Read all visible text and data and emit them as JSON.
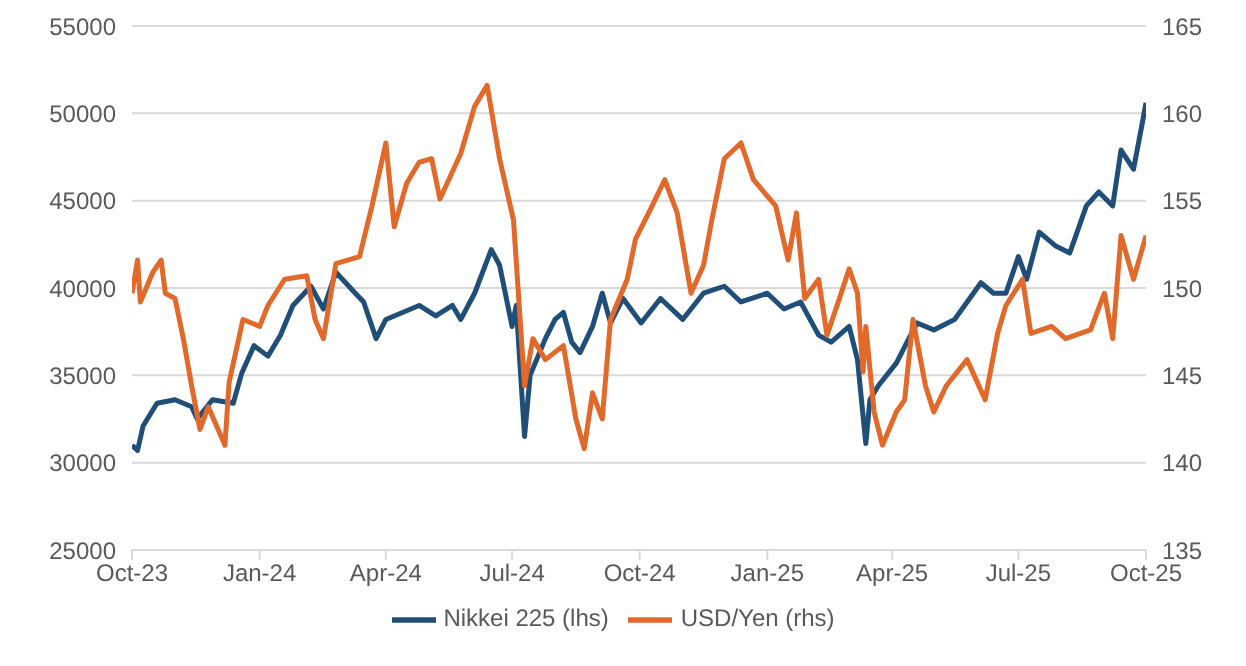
{
  "chart_data": {
    "type": "line",
    "xlim": [
      "2023-10",
      "2025-10"
    ],
    "xticks": [
      {
        "value": "2023-10",
        "label": "Oct-23"
      },
      {
        "value": "2024-01",
        "label": "Jan-24"
      },
      {
        "value": "2024-04",
        "label": "Apr-24"
      },
      {
        "value": "2024-07",
        "label": "Jul-24"
      },
      {
        "value": "2024-10",
        "label": "Oct-24"
      },
      {
        "value": "2025-01",
        "label": "Jan-25"
      },
      {
        "value": "2025-04",
        "label": "Apr-25"
      },
      {
        "value": "2025-07",
        "label": "Jul-25"
      },
      {
        "value": "2025-10",
        "label": "Oct-25"
      }
    ],
    "ylim": [
      25000,
      55000
    ],
    "yticks": [
      25000,
      30000,
      35000,
      40000,
      45000,
      50000,
      55000
    ],
    "y2lim": [
      135,
      165
    ],
    "y2ticks": [
      135,
      140,
      145,
      150,
      155,
      160,
      165
    ],
    "grid": "y",
    "legend": "bottom",
    "marker": "none",
    "line_style": "solid",
    "series": [
      {
        "name": "Nikkei 225 (lhs)",
        "color": "#1f4e79",
        "x": [
          "2023-10-01",
          "2023-10-05",
          "2023-10-09",
          "2023-10-19",
          "2023-11-01",
          "2023-11-13",
          "2023-11-17",
          "2023-11-28",
          "2023-12-13",
          "2023-12-19",
          "2023-12-28",
          "2024-01-07",
          "2024-01-16",
          "2024-01-25",
          "2024-02-07",
          "2024-02-16",
          "2024-02-25",
          "2024-03-10",
          "2024-03-16",
          "2024-03-25",
          "2024-04-01",
          "2024-04-13",
          "2024-04-25",
          "2024-05-07",
          "2024-05-19",
          "2024-05-25",
          "2024-06-04",
          "2024-06-16",
          "2024-06-22",
          "2024-07-01",
          "2024-07-04",
          "2024-07-10",
          "2024-07-14",
          "2024-07-25",
          "2024-08-01",
          "2024-08-07",
          "2024-08-13",
          "2024-08-19",
          "2024-08-28",
          "2024-09-04",
          "2024-09-10",
          "2024-09-19",
          "2024-10-02",
          "2024-10-16",
          "2024-11-01",
          "2024-11-16",
          "2024-12-01",
          "2024-12-13",
          "2025-01-01",
          "2025-01-13",
          "2025-01-25",
          "2025-02-07",
          "2025-02-16",
          "2025-03-01",
          "2025-03-07",
          "2025-03-13",
          "2025-03-16",
          "2025-03-22",
          "2025-04-04",
          "2025-04-13",
          "2025-04-19",
          "2025-05-01",
          "2025-05-16",
          "2025-06-04",
          "2025-06-13",
          "2025-06-22",
          "2025-07-01",
          "2025-07-07",
          "2025-07-16",
          "2025-07-28",
          "2025-08-07",
          "2025-08-19",
          "2025-08-28",
          "2025-09-07",
          "2025-09-13",
          "2025-09-22",
          "2025-09-28",
          "2025-10-01"
        ],
        "values": [
          31000,
          30700,
          32100,
          33400,
          33600,
          33200,
          32500,
          33600,
          33400,
          35100,
          36700,
          36100,
          37300,
          39000,
          40100,
          38800,
          40900,
          39700,
          39200,
          37100,
          38200,
          38600,
          39000,
          38400,
          39000,
          38200,
          39700,
          42200,
          41300,
          37800,
          39000,
          31500,
          35000,
          37100,
          38200,
          38600,
          36900,
          36300,
          37800,
          39700,
          38000,
          39400,
          38000,
          39400,
          38200,
          39700,
          40100,
          39200,
          39700,
          38800,
          39200,
          37300,
          36900,
          37800,
          35900,
          31100,
          33600,
          34400,
          35700,
          37100,
          38000,
          37600,
          38200,
          40300,
          39700,
          39700,
          41800,
          40500,
          43200,
          42400,
          42000,
          44700,
          45500,
          44700,
          47900,
          46800,
          49300,
          50600
        ]
      },
      {
        "name": "USD/Yen (rhs)",
        "color": "#e2692a",
        "axis": "y2",
        "x": [
          "2023-10-01",
          "2023-10-05",
          "2023-10-07",
          "2023-10-16",
          "2023-10-22",
          "2023-10-25",
          "2023-11-01",
          "2023-11-07",
          "2023-11-13",
          "2023-11-19",
          "2023-11-25",
          "2023-12-07",
          "2023-12-10",
          "2023-12-20",
          "2024-01-01",
          "2024-01-07",
          "2024-01-19",
          "2024-02-04",
          "2024-02-10",
          "2024-02-16",
          "2024-02-25",
          "2024-03-13",
          "2024-03-22",
          "2024-04-01",
          "2024-04-07",
          "2024-04-16",
          "2024-04-25",
          "2024-05-04",
          "2024-05-10",
          "2024-05-25",
          "2024-06-04",
          "2024-06-13",
          "2024-06-22",
          "2024-07-02",
          "2024-07-10",
          "2024-07-16",
          "2024-07-25",
          "2024-08-07",
          "2024-08-16",
          "2024-08-22",
          "2024-08-28",
          "2024-09-04",
          "2024-09-10",
          "2024-09-22",
          "2024-09-28",
          "2024-10-10",
          "2024-10-19",
          "2024-10-28",
          "2024-11-07",
          "2024-11-16",
          "2024-11-22",
          "2024-12-01",
          "2024-12-13",
          "2024-12-22",
          "2025-01-07",
          "2025-01-16",
          "2025-01-22",
          "2025-01-28",
          "2025-02-07",
          "2025-02-13",
          "2025-02-22",
          "2025-03-01",
          "2025-03-07",
          "2025-03-11",
          "2025-03-13",
          "2025-03-19",
          "2025-03-25",
          "2025-04-04",
          "2025-04-10",
          "2025-04-16",
          "2025-04-25",
          "2025-05-01",
          "2025-05-10",
          "2025-05-25",
          "2025-06-07",
          "2025-06-16",
          "2025-06-22",
          "2025-07-04",
          "2025-07-10",
          "2025-07-25",
          "2025-08-04",
          "2025-08-22",
          "2025-09-01",
          "2025-09-07",
          "2025-09-13",
          "2025-09-22",
          "2025-10-01"
        ],
        "values": [
          149.7,
          151.6,
          149.2,
          150.9,
          151.6,
          149.7,
          149.4,
          147.1,
          144.4,
          141.9,
          143.2,
          141.0,
          144.6,
          148.2,
          147.8,
          149.0,
          150.5,
          150.7,
          148.2,
          147.1,
          151.4,
          151.8,
          154.7,
          158.3,
          153.5,
          156.0,
          157.2,
          157.4,
          155.1,
          157.7,
          160.4,
          161.6,
          157.4,
          153.9,
          144.4,
          147.1,
          145.9,
          146.7,
          142.5,
          140.8,
          144.0,
          142.5,
          148.2,
          150.5,
          152.8,
          154.7,
          156.2,
          154.3,
          149.7,
          151.3,
          153.9,
          157.4,
          158.3,
          156.2,
          154.7,
          151.6,
          154.3,
          149.4,
          150.5,
          147.3,
          149.4,
          151.1,
          149.7,
          145.2,
          147.8,
          142.9,
          141.0,
          142.9,
          143.6,
          148.2,
          144.4,
          142.9,
          144.4,
          145.9,
          143.6,
          147.4,
          149.0,
          150.5,
          147.4,
          147.8,
          147.1,
          147.6,
          149.7,
          147.1,
          153.0,
          150.5,
          153.0
        ]
      }
    ]
  }
}
